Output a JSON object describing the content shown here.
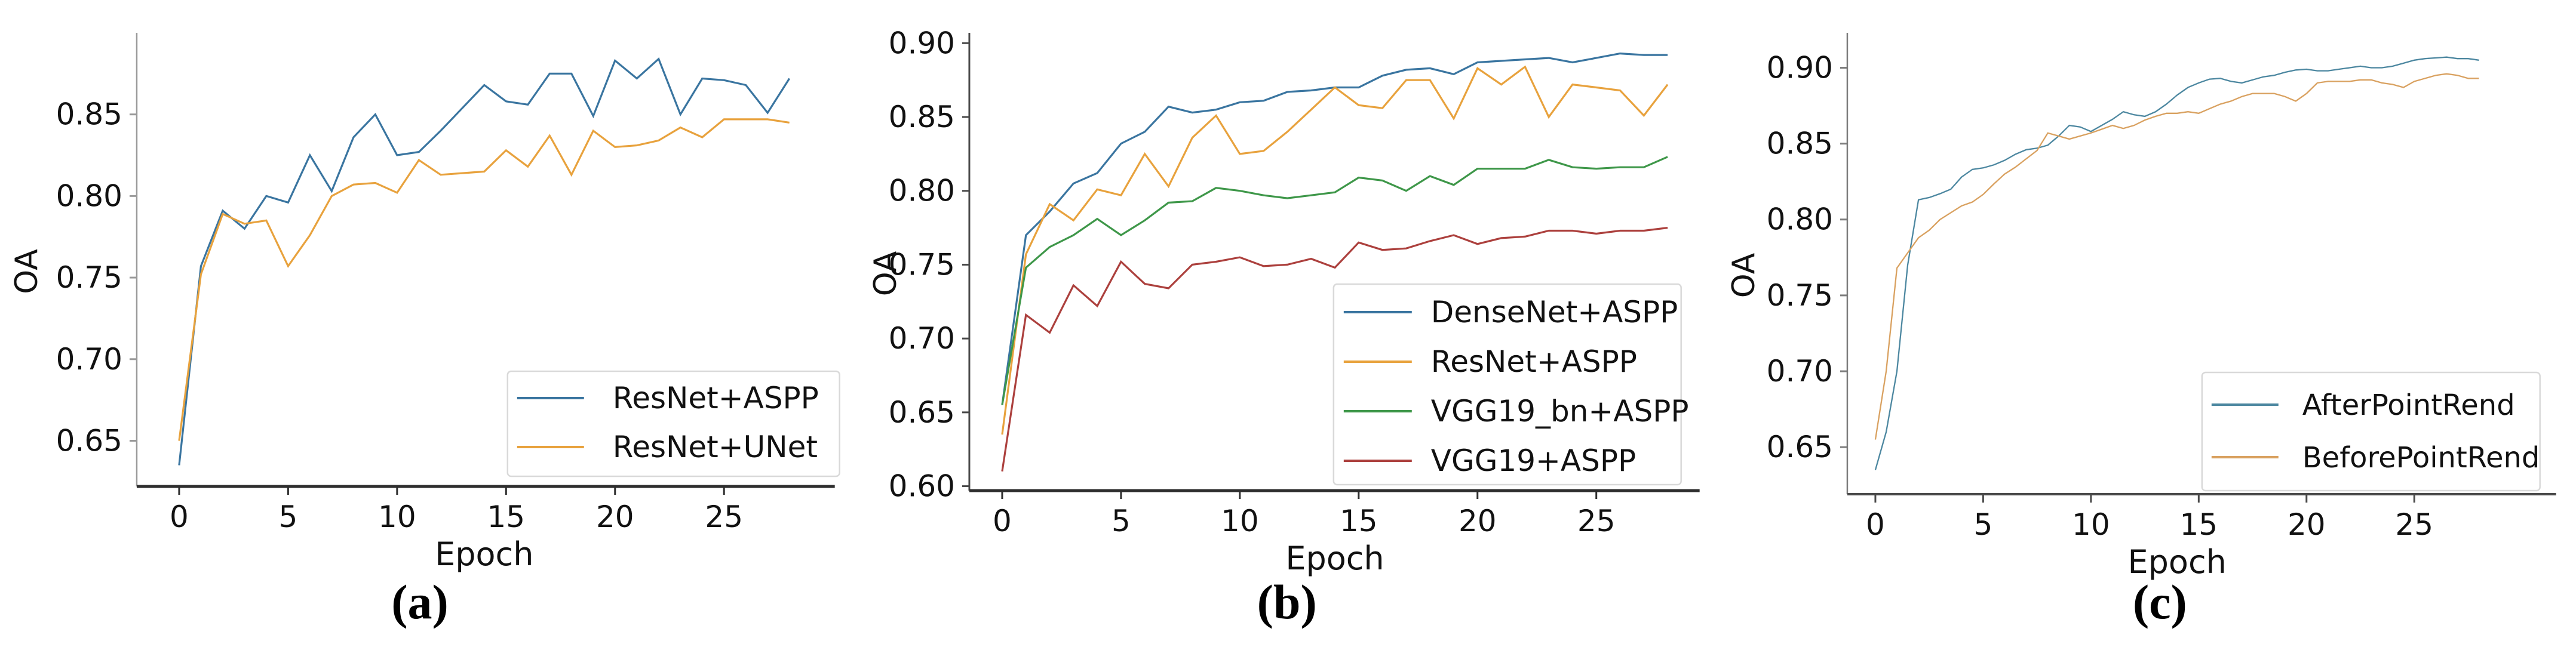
{
  "figure": {
    "background": "#ffffff",
    "text_color": "#111111",
    "axis_label_x": "Epoch",
    "axis_label_y": "OA"
  },
  "chart_data": [
    {
      "panel": "a",
      "type": "line",
      "caption": "(a)",
      "xlabel": "Epoch",
      "ylabel": "OA",
      "xticks": [
        0,
        5,
        10,
        15,
        20,
        25
      ],
      "yticks": [
        0.65,
        0.7,
        0.75,
        0.8,
        0.85
      ],
      "xlim": [
        0,
        28
      ],
      "ylim": [
        0.622,
        0.9
      ],
      "grid": false,
      "legend_position": "lower right",
      "x": [
        0,
        1,
        2,
        3,
        4,
        5,
        6,
        7,
        8,
        9,
        10,
        11,
        12,
        13,
        14,
        15,
        16,
        17,
        18,
        19,
        20,
        21,
        22,
        23,
        24,
        25,
        26,
        27,
        28
      ],
      "series": [
        {
          "name": "ResNet+ASPP",
          "color": "#3A75A0",
          "values": [
            0.635,
            0.757,
            0.791,
            0.78,
            0.8,
            0.796,
            0.825,
            0.803,
            0.836,
            0.85,
            0.825,
            0.827,
            0.84,
            0.854,
            0.868,
            0.858,
            0.856,
            0.875,
            0.875,
            0.849,
            0.883,
            0.872,
            0.884,
            0.85,
            0.872,
            0.871,
            0.868,
            0.851,
            0.872
          ]
        },
        {
          "name": "ResNet+UNet",
          "color": "#E8A23D",
          "values": [
            0.65,
            0.752,
            0.789,
            0.783,
            0.785,
            0.757,
            0.776,
            0.8,
            0.807,
            0.808,
            0.802,
            0.822,
            0.813,
            0.814,
            0.815,
            0.828,
            0.818,
            0.837,
            0.813,
            0.84,
            0.83,
            0.831,
            0.834,
            0.842,
            0.836,
            0.847,
            0.847,
            0.847,
            0.845
          ]
        }
      ]
    },
    {
      "panel": "b",
      "type": "line",
      "caption": "(b)",
      "xlabel": "Epoch",
      "ylabel": "OA",
      "xticks": [
        0,
        5,
        10,
        15,
        20,
        25
      ],
      "yticks": [
        0.6,
        0.65,
        0.7,
        0.75,
        0.8,
        0.85,
        0.9
      ],
      "xlim": [
        0,
        28
      ],
      "ylim": [
        0.597,
        0.907
      ],
      "grid": false,
      "legend_position": "lower right",
      "x": [
        0,
        1,
        2,
        3,
        4,
        5,
        6,
        7,
        8,
        9,
        10,
        11,
        12,
        13,
        14,
        15,
        16,
        17,
        18,
        19,
        20,
        21,
        22,
        23,
        24,
        25,
        26,
        27,
        28
      ],
      "series": [
        {
          "name": "DenseNet+ASPP",
          "color": "#3A75A0",
          "values": [
            0.655,
            0.77,
            0.786,
            0.805,
            0.812,
            0.832,
            0.84,
            0.857,
            0.853,
            0.855,
            0.86,
            0.861,
            0.867,
            0.868,
            0.87,
            0.87,
            0.878,
            0.882,
            0.883,
            0.879,
            0.887,
            0.888,
            0.889,
            0.89,
            0.887,
            0.89,
            0.893,
            0.892,
            0.892
          ]
        },
        {
          "name": "ResNet+ASPP",
          "color": "#E8A23D",
          "values": [
            0.635,
            0.757,
            0.791,
            0.78,
            0.801,
            0.797,
            0.825,
            0.803,
            0.836,
            0.851,
            0.825,
            0.827,
            0.84,
            0.855,
            0.87,
            0.858,
            0.856,
            0.875,
            0.875,
            0.849,
            0.883,
            0.872,
            0.884,
            0.85,
            0.872,
            0.87,
            0.868,
            0.851,
            0.872
          ]
        },
        {
          "name": "VGG19_bn+ASPP",
          "color": "#3E9749",
          "values": [
            0.655,
            0.748,
            0.762,
            0.77,
            0.781,
            0.77,
            0.78,
            0.792,
            0.793,
            0.802,
            0.8,
            0.797,
            0.795,
            0.797,
            0.799,
            0.809,
            0.807,
            0.8,
            0.81,
            0.804,
            0.815,
            0.815,
            0.815,
            0.821,
            0.816,
            0.815,
            0.816,
            0.816,
            0.823
          ]
        },
        {
          "name": "VGG19+ASPP",
          "color": "#AC403D",
          "values": [
            0.61,
            0.716,
            0.704,
            0.736,
            0.722,
            0.752,
            0.737,
            0.734,
            0.75,
            0.752,
            0.755,
            0.749,
            0.75,
            0.754,
            0.748,
            0.765,
            0.76,
            0.761,
            0.766,
            0.77,
            0.764,
            0.768,
            0.769,
            0.773,
            0.773,
            0.771,
            0.773,
            0.773,
            0.775
          ]
        }
      ]
    },
    {
      "panel": "c",
      "type": "line",
      "caption": "(c)",
      "xlabel": "Epoch",
      "ylabel": "OA",
      "xticks": [
        0,
        5,
        10,
        15,
        20,
        25
      ],
      "yticks": [
        0.65,
        0.7,
        0.75,
        0.8,
        0.85,
        0.9
      ],
      "xlim": [
        0,
        28
      ],
      "ylim": [
        0.619,
        0.923
      ],
      "grid": false,
      "legend_position": "lower right",
      "x": [
        0,
        0.5,
        1,
        1.5,
        2,
        2.5,
        3,
        3.5,
        4,
        4.5,
        5,
        5.5,
        6,
        6.5,
        7,
        7.5,
        8,
        8.5,
        9,
        9.5,
        10,
        10.5,
        11,
        11.5,
        12,
        12.5,
        13,
        13.5,
        14,
        14.5,
        15,
        15.5,
        16,
        16.5,
        17,
        17.5,
        18,
        18.5,
        19,
        19.5,
        20,
        20.5,
        21,
        21.5,
        22,
        22.5,
        23,
        23.5,
        24,
        24.5,
        25,
        25.5,
        26,
        26.5,
        27,
        27.5,
        28
      ],
      "series": [
        {
          "name": "AfterPointRend",
          "color": "#4C87A0",
          "values": [
            0.635,
            0.66,
            0.7,
            0.77,
            0.813,
            0.8145,
            0.817,
            0.82,
            0.828,
            0.833,
            0.834,
            0.836,
            0.839,
            0.843,
            0.846,
            0.847,
            0.849,
            0.855,
            0.862,
            0.861,
            0.858,
            0.862,
            0.866,
            0.871,
            0.869,
            0.868,
            0.871,
            0.876,
            0.882,
            0.887,
            0.89,
            0.8925,
            0.893,
            0.891,
            0.89,
            0.892,
            0.894,
            0.895,
            0.897,
            0.8985,
            0.899,
            0.898,
            0.898,
            0.899,
            0.9,
            0.901,
            0.9,
            0.9,
            0.901,
            0.903,
            0.905,
            0.906,
            0.9065,
            0.907,
            0.906,
            0.906,
            0.905
          ]
        },
        {
          "name": "BeforePointRend",
          "color": "#D9A160",
          "values": [
            0.655,
            0.7,
            0.768,
            0.778,
            0.788,
            0.793,
            0.8,
            0.8045,
            0.809,
            0.8115,
            0.8165,
            0.8235,
            0.83,
            0.8345,
            0.84,
            0.8455,
            0.857,
            0.855,
            0.853,
            0.855,
            0.857,
            0.8595,
            0.862,
            0.86,
            0.862,
            0.8655,
            0.868,
            0.87,
            0.87,
            0.871,
            0.87,
            0.873,
            0.876,
            0.878,
            0.881,
            0.883,
            0.883,
            0.883,
            0.881,
            0.878,
            0.883,
            0.89,
            0.891,
            0.891,
            0.891,
            0.892,
            0.892,
            0.89,
            0.889,
            0.887,
            0.891,
            0.893,
            0.895,
            0.896,
            0.895,
            0.893,
            0.893
          ]
        }
      ]
    }
  ]
}
